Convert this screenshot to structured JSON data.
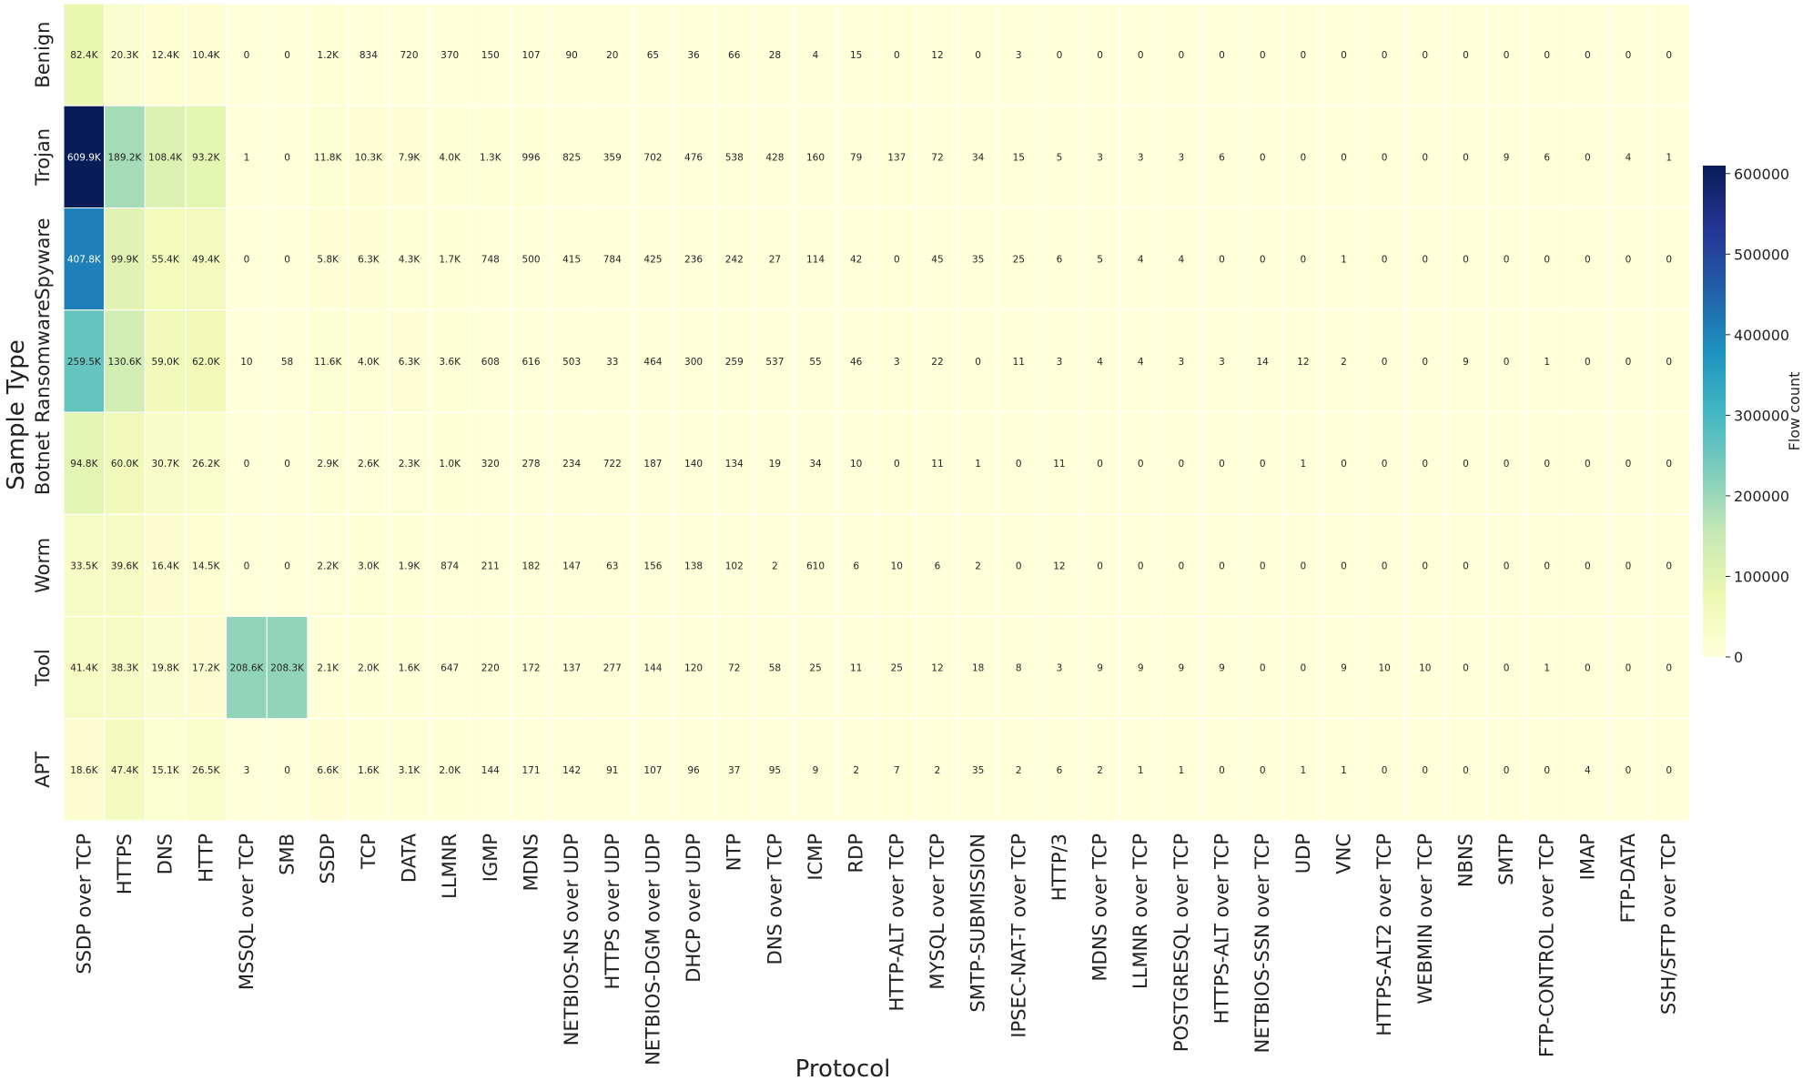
{
  "chart_data": {
    "type": "heatmap",
    "xlabel": "Protocol",
    "ylabel": "Sample Type",
    "colorbar_label": "Flow count",
    "colormap": [
      "#ffffd9",
      "#edf8b1",
      "#c7e9b4",
      "#7fcdbb",
      "#41b6c4",
      "#1d91c0",
      "#225ea8",
      "#253494",
      "#081d58"
    ],
    "value_range": [
      0,
      609900
    ],
    "colorbar_ticks": [
      0,
      100000,
      200000,
      300000,
      400000,
      500000,
      600000
    ],
    "colorbar_tick_labels": [
      "0",
      "100000",
      "200000",
      "300000",
      "400000",
      "500000",
      "600000"
    ],
    "rows": [
      "Benign",
      "Trojan",
      "Spyware",
      "Ransomware",
      "Botnet",
      "Worm",
      "Tool",
      "APT"
    ],
    "columns": [
      "SSDP over TCP",
      "HTTPS",
      "DNS",
      "HTTP",
      "MSSQL over TCP",
      "SMB",
      "SSDP",
      "TCP",
      "DATA",
      "LLMNR",
      "IGMP",
      "MDNS",
      "NETBIOS-NS over UDP",
      "HTTPS over UDP",
      "NETBIOS-DGM over UDP",
      "DHCP over UDP",
      "NTP",
      "DNS over TCP",
      "ICMP",
      "RDP",
      "HTTP-ALT over TCP",
      "MYSQL over TCP",
      "SMTP-SUBMISSION",
      "IPSEC-NAT-T over TCP",
      "HTTP/3",
      "MDNS over TCP",
      "LLMNR over TCP",
      "POSTGRESQL over TCP",
      "HTTPS-ALT over TCP",
      "NETBIOS-SSN over TCP",
      "UDP",
      "VNC",
      "HTTPS-ALT2 over TCP",
      "WEBMIN over TCP",
      "NBNS",
      "SMTP",
      "FTP-CONTROL over TCP",
      "IMAP",
      "FTP-DATA",
      "SSH/SFTP over TCP"
    ],
    "values": [
      [
        82400,
        20300,
        12400,
        10400,
        0,
        0,
        1200,
        834,
        720,
        370,
        150,
        107,
        90,
        20,
        65,
        36,
        66,
        28,
        4,
        15,
        0,
        12,
        0,
        3,
        0,
        0,
        0,
        0,
        0,
        0,
        0,
        0,
        0,
        0,
        0,
        0,
        0,
        0,
        0,
        0
      ],
      [
        609900,
        189200,
        108400,
        93200,
        1,
        0,
        11800,
        10300,
        7900,
        4000,
        1300,
        996,
        825,
        359,
        702,
        476,
        538,
        428,
        160,
        79,
        137,
        72,
        34,
        15,
        5,
        3,
        3,
        3,
        6,
        0,
        0,
        0,
        0,
        0,
        0,
        9,
        6,
        0,
        4,
        1
      ],
      [
        407800,
        99900,
        55400,
        49400,
        0,
        0,
        5800,
        6300,
        4300,
        1700,
        748,
        500,
        415,
        784,
        425,
        236,
        242,
        27,
        114,
        42,
        0,
        45,
        35,
        25,
        6,
        5,
        4,
        4,
        0,
        0,
        0,
        1,
        0,
        0,
        0,
        0,
        0,
        0,
        0,
        0
      ],
      [
        259500,
        130600,
        59000,
        62000,
        10,
        58,
        11600,
        4000,
        6300,
        3600,
        608,
        616,
        503,
        33,
        464,
        300,
        259,
        537,
        55,
        46,
        3,
        22,
        0,
        11,
        3,
        4,
        4,
        3,
        3,
        14,
        12,
        2,
        0,
        0,
        9,
        0,
        1,
        0,
        0,
        0
      ],
      [
        94800,
        60000,
        30700,
        26200,
        0,
        0,
        2900,
        2600,
        2300,
        1000,
        320,
        278,
        234,
        722,
        187,
        140,
        134,
        19,
        34,
        10,
        0,
        11,
        1,
        0,
        11,
        0,
        0,
        0,
        0,
        0,
        1,
        0,
        0,
        0,
        0,
        0,
        0,
        0,
        0,
        0
      ],
      [
        33500,
        39600,
        16400,
        14500,
        0,
        0,
        2200,
        3000,
        1900,
        874,
        211,
        182,
        147,
        63,
        156,
        138,
        102,
        2,
        610,
        6,
        10,
        6,
        2,
        0,
        12,
        0,
        0,
        0,
        0,
        0,
        0,
        0,
        0,
        0,
        0,
        0,
        0,
        0,
        0,
        0
      ],
      [
        41400,
        38300,
        19800,
        17200,
        208600,
        208300,
        2100,
        2000,
        1600,
        647,
        220,
        172,
        137,
        277,
        144,
        120,
        72,
        58,
        25,
        11,
        25,
        12,
        18,
        8,
        3,
        9,
        9,
        9,
        9,
        0,
        0,
        9,
        10,
        10,
        0,
        0,
        1,
        0,
        0,
        0
      ],
      [
        18600,
        47400,
        15100,
        26500,
        3,
        0,
        6600,
        1600,
        3100,
        2000,
        144,
        171,
        142,
        91,
        107,
        96,
        37,
        95,
        9,
        2,
        7,
        2,
        35,
        2,
        6,
        2,
        1,
        1,
        0,
        0,
        1,
        1,
        0,
        0,
        0,
        0,
        0,
        4,
        0,
        0
      ]
    ],
    "value_labels": [
      [
        "82.4K",
        "20.3K",
        "12.4K",
        "10.4K",
        "0",
        "0",
        "1.2K",
        "834",
        "720",
        "370",
        "150",
        "107",
        "90",
        "20",
        "65",
        "36",
        "66",
        "28",
        "4",
        "15",
        "0",
        "12",
        "0",
        "3",
        "0",
        "0",
        "0",
        "0",
        "0",
        "0",
        "0",
        "0",
        "0",
        "0",
        "0",
        "0",
        "0",
        "0",
        "0",
        "0"
      ],
      [
        "609.9K",
        "189.2K",
        "108.4K",
        "93.2K",
        "1",
        "0",
        "11.8K",
        "10.3K",
        "7.9K",
        "4.0K",
        "1.3K",
        "996",
        "825",
        "359",
        "702",
        "476",
        "538",
        "428",
        "160",
        "79",
        "137",
        "72",
        "34",
        "15",
        "5",
        "3",
        "3",
        "3",
        "6",
        "0",
        "0",
        "0",
        "0",
        "0",
        "0",
        "9",
        "6",
        "0",
        "4",
        "1"
      ],
      [
        "407.8K",
        "99.9K",
        "55.4K",
        "49.4K",
        "0",
        "0",
        "5.8K",
        "6.3K",
        "4.3K",
        "1.7K",
        "748",
        "500",
        "415",
        "784",
        "425",
        "236",
        "242",
        "27",
        "114",
        "42",
        "0",
        "45",
        "35",
        "25",
        "6",
        "5",
        "4",
        "4",
        "0",
        "0",
        "0",
        "1",
        "0",
        "0",
        "0",
        "0",
        "0",
        "0",
        "0",
        "0"
      ],
      [
        "259.5K",
        "130.6K",
        "59.0K",
        "62.0K",
        "10",
        "58",
        "11.6K",
        "4.0K",
        "6.3K",
        "3.6K",
        "608",
        "616",
        "503",
        "33",
        "464",
        "300",
        "259",
        "537",
        "55",
        "46",
        "3",
        "22",
        "0",
        "11",
        "3",
        "4",
        "4",
        "3",
        "3",
        "14",
        "12",
        "2",
        "0",
        "0",
        "9",
        "0",
        "1",
        "0",
        "0",
        "0"
      ],
      [
        "94.8K",
        "60.0K",
        "30.7K",
        "26.2K",
        "0",
        "0",
        "2.9K",
        "2.6K",
        "2.3K",
        "1.0K",
        "320",
        "278",
        "234",
        "722",
        "187",
        "140",
        "134",
        "19",
        "34",
        "10",
        "0",
        "11",
        "1",
        "0",
        "11",
        "0",
        "0",
        "0",
        "0",
        "0",
        "1",
        "0",
        "0",
        "0",
        "0",
        "0",
        "0",
        "0",
        "0",
        "0"
      ],
      [
        "33.5K",
        "39.6K",
        "16.4K",
        "14.5K",
        "0",
        "0",
        "2.2K",
        "3.0K",
        "1.9K",
        "874",
        "211",
        "182",
        "147",
        "63",
        "156",
        "138",
        "102",
        "2",
        "610",
        "6",
        "10",
        "6",
        "2",
        "0",
        "12",
        "0",
        "0",
        "0",
        "0",
        "0",
        "0",
        "0",
        "0",
        "0",
        "0",
        "0",
        "0",
        "0",
        "0",
        "0"
      ],
      [
        "41.4K",
        "38.3K",
        "19.8K",
        "17.2K",
        "208.6K",
        "208.3K",
        "2.1K",
        "2.0K",
        "1.6K",
        "647",
        "220",
        "172",
        "137",
        "277",
        "144",
        "120",
        "72",
        "58",
        "25",
        "11",
        "25",
        "12",
        "18",
        "8",
        "3",
        "9",
        "9",
        "9",
        "9",
        "0",
        "0",
        "9",
        "10",
        "10",
        "0",
        "0",
        "1",
        "0",
        "0",
        "0"
      ],
      [
        "18.6K",
        "47.4K",
        "15.1K",
        "26.5K",
        "3",
        "0",
        "6.6K",
        "1.6K",
        "3.1K",
        "2.0K",
        "144",
        "171",
        "142",
        "91",
        "107",
        "96",
        "37",
        "95",
        "9",
        "2",
        "7",
        "2",
        "35",
        "2",
        "6",
        "2",
        "1",
        "1",
        "0",
        "0",
        "1",
        "1",
        "0",
        "0",
        "0",
        "0",
        "0",
        "4",
        "0",
        "0"
      ]
    ],
    "grid": false,
    "legend": "right colorbar"
  }
}
